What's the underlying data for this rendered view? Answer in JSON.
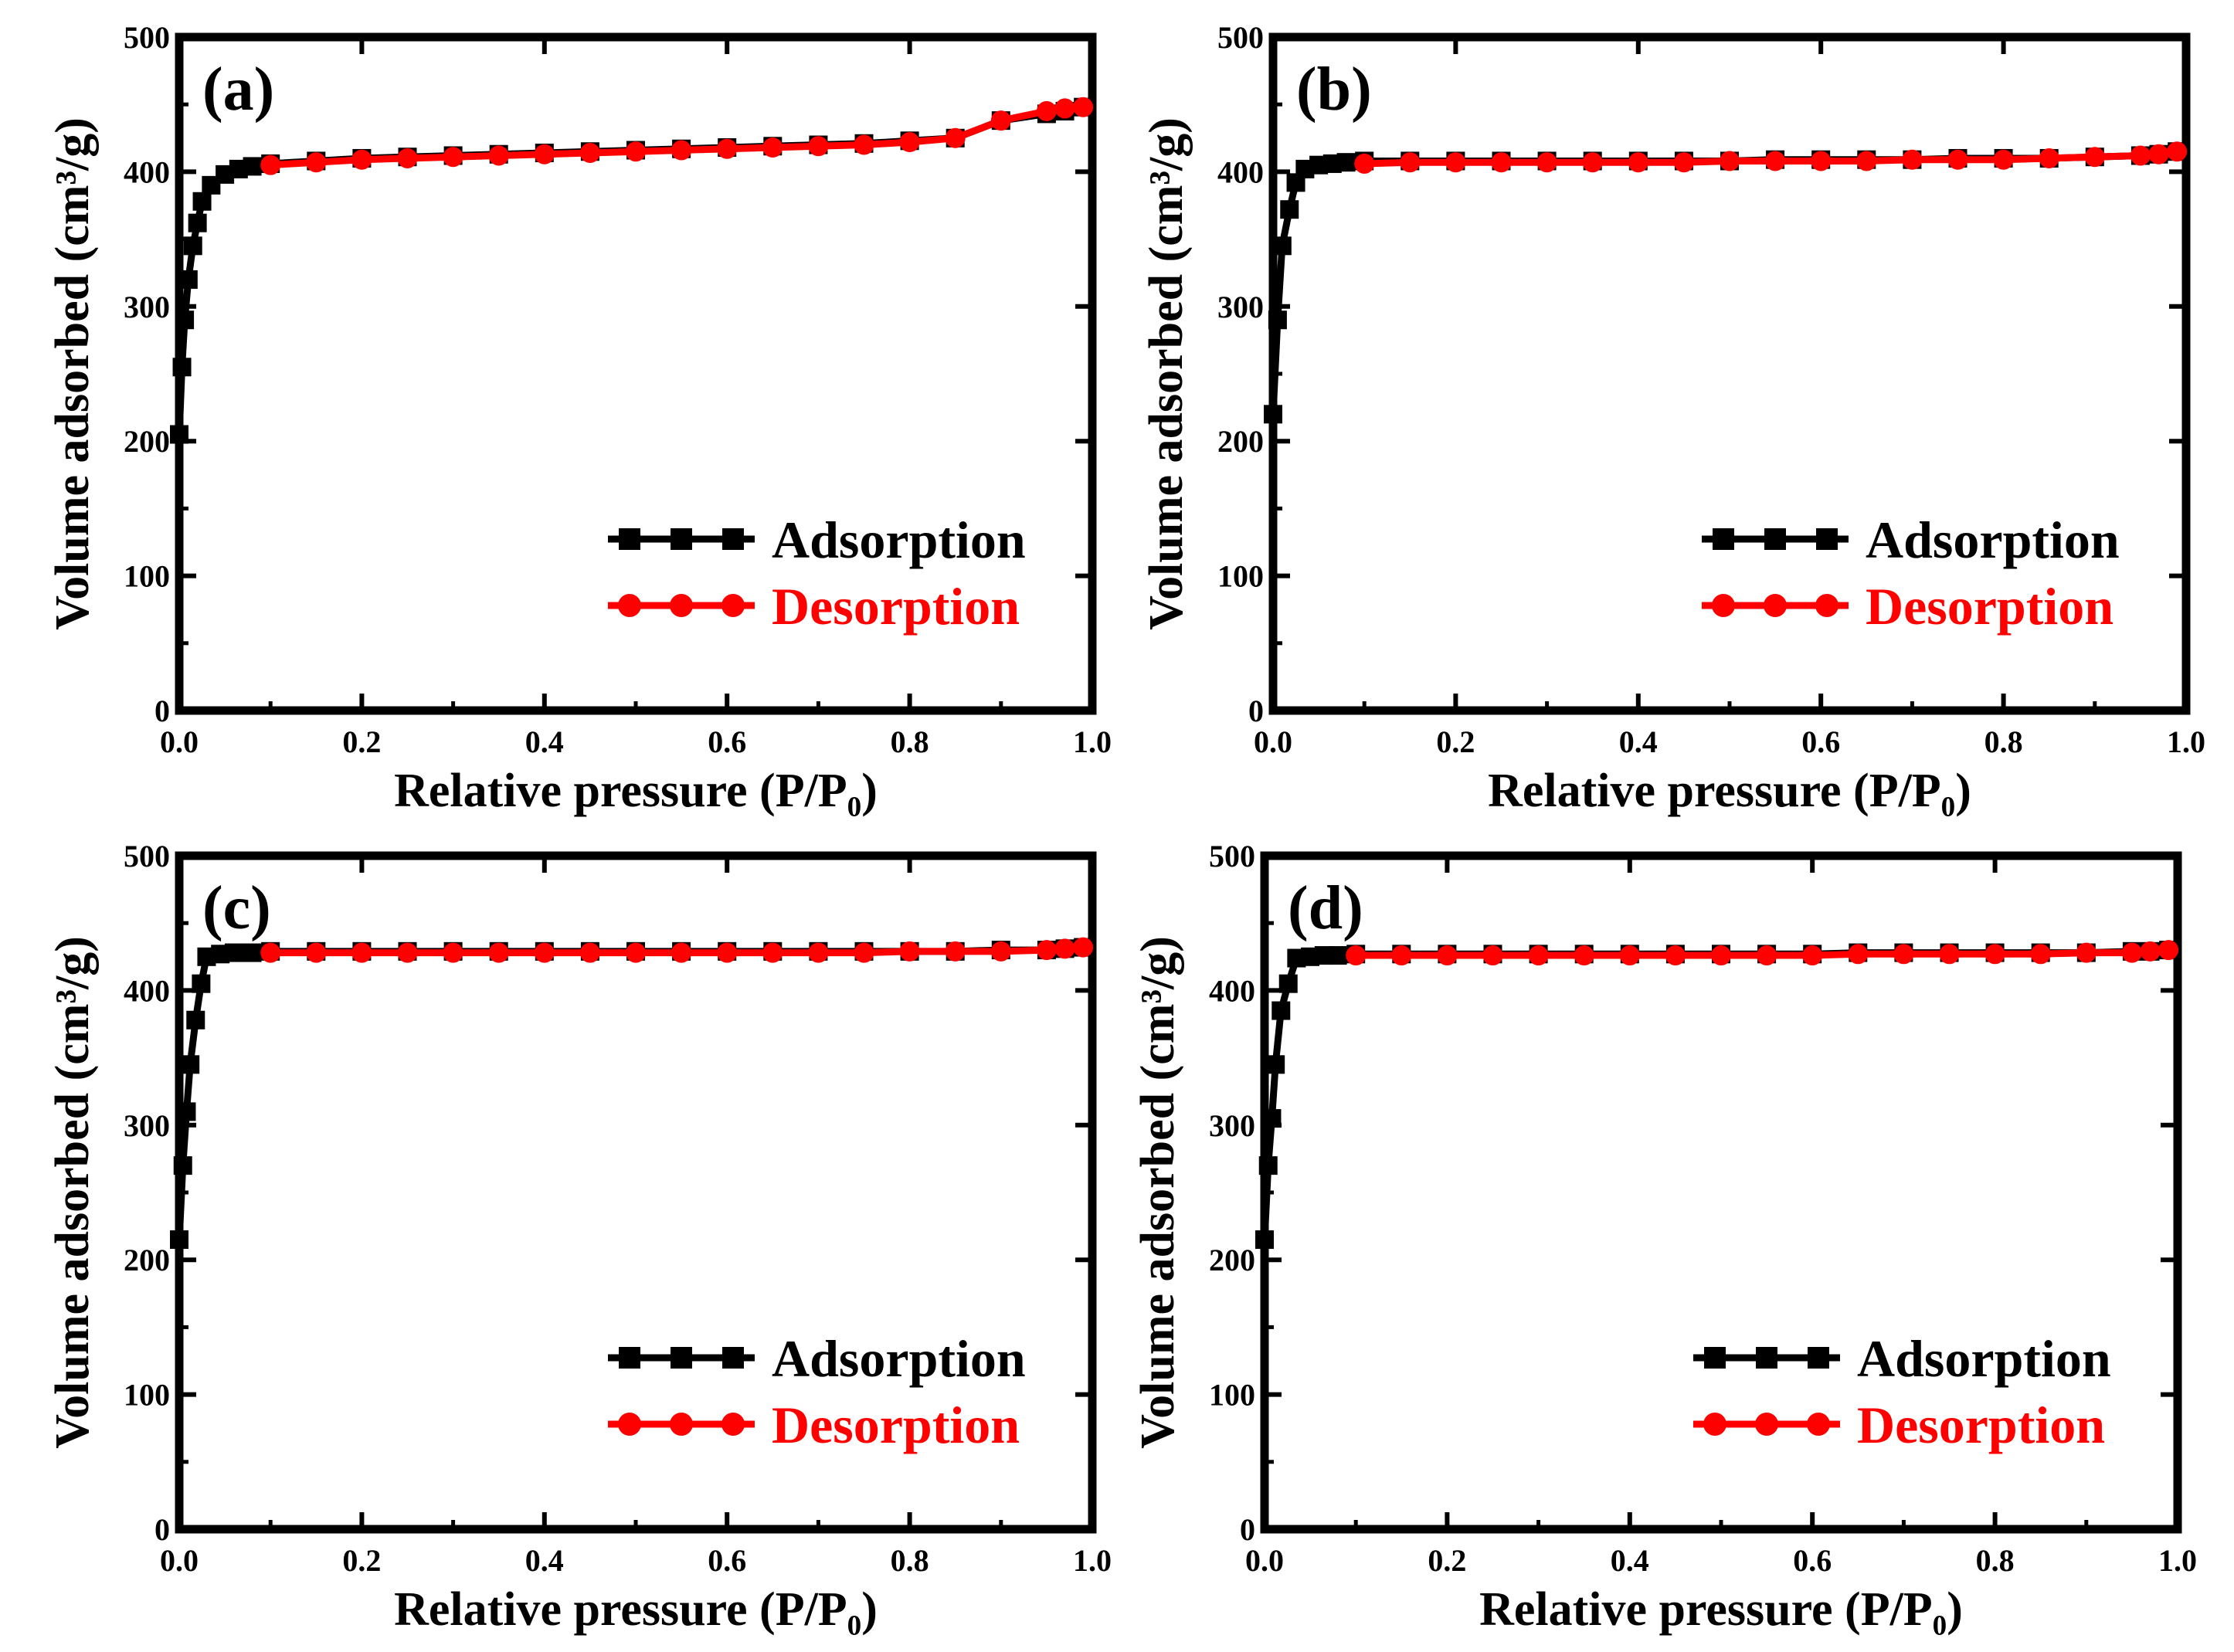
{
  "figure": {
    "colors": {
      "adsorption": "#000000",
      "desorption": "#ff0000",
      "axes": "#000000",
      "background": "#ffffff"
    }
  },
  "chart_data": [
    {
      "panel": "(a)",
      "type": "line",
      "xlabel": "Relative pressure (P/P₀)",
      "ylabel": "Volume adsorbed (cm³/g)",
      "xlim": [
        0.0,
        1.0
      ],
      "ylim": [
        0,
        500
      ],
      "xticks": [
        "0.0",
        "0.2",
        "0.4",
        "0.6",
        "0.8",
        "1.0"
      ],
      "yticks": [
        "0",
        "100",
        "200",
        "300",
        "400",
        "500"
      ],
      "legend": {
        "position": "bottom-right",
        "entries": [
          "Adsorption",
          "Desorption"
        ]
      },
      "series": [
        {
          "name": "Adsorption",
          "color": "#000000",
          "marker": "square",
          "points": [
            [
              0.0,
              205
            ],
            [
              0.003,
              255
            ],
            [
              0.006,
              290
            ],
            [
              0.01,
              320
            ],
            [
              0.015,
              345
            ],
            [
              0.02,
              362
            ],
            [
              0.025,
              378
            ],
            [
              0.035,
              390
            ],
            [
              0.05,
              398
            ],
            [
              0.065,
              402
            ],
            [
              0.08,
              404
            ],
            [
              0.1,
              406
            ],
            [
              0.15,
              408
            ],
            [
              0.2,
              410
            ],
            [
              0.25,
              411
            ],
            [
              0.3,
              412
            ],
            [
              0.35,
              413
            ],
            [
              0.4,
              414
            ],
            [
              0.45,
              415
            ],
            [
              0.5,
              416
            ],
            [
              0.55,
              417
            ],
            [
              0.6,
              418
            ],
            [
              0.65,
              419
            ],
            [
              0.7,
              420
            ],
            [
              0.75,
              421
            ],
            [
              0.8,
              423
            ],
            [
              0.85,
              425
            ],
            [
              0.9,
              438
            ],
            [
              0.95,
              443
            ],
            [
              0.97,
              445
            ],
            [
              0.99,
              448
            ]
          ]
        },
        {
          "name": "Desorption",
          "color": "#ff0000",
          "marker": "circle",
          "points": [
            [
              0.1,
              405
            ],
            [
              0.15,
              407
            ],
            [
              0.2,
              409
            ],
            [
              0.25,
              410
            ],
            [
              0.3,
              411
            ],
            [
              0.35,
              412
            ],
            [
              0.4,
              413
            ],
            [
              0.45,
              414
            ],
            [
              0.5,
              415
            ],
            [
              0.55,
              416
            ],
            [
              0.6,
              417
            ],
            [
              0.65,
              418
            ],
            [
              0.7,
              419
            ],
            [
              0.75,
              420
            ],
            [
              0.8,
              422
            ],
            [
              0.85,
              425
            ],
            [
              0.9,
              438
            ],
            [
              0.95,
              445
            ],
            [
              0.97,
              447
            ],
            [
              0.99,
              448
            ]
          ]
        }
      ]
    },
    {
      "panel": "(b)",
      "type": "line",
      "xlabel": "Relative pressure (P/P₀)",
      "ylabel": "Volume adsorbed (cm³/g)",
      "xlim": [
        0.0,
        1.0
      ],
      "ylim": [
        0,
        500
      ],
      "xticks": [
        "0.0",
        "0.2",
        "0.4",
        "0.6",
        "0.8",
        "1.0"
      ],
      "yticks": [
        "0",
        "100",
        "200",
        "300",
        "400",
        "500"
      ],
      "legend": {
        "position": "bottom-right",
        "entries": [
          "Adsorption",
          "Desorption"
        ]
      },
      "series": [
        {
          "name": "Adsorption",
          "color": "#000000",
          "marker": "square",
          "points": [
            [
              0.0,
              220
            ],
            [
              0.005,
              290
            ],
            [
              0.01,
              345
            ],
            [
              0.018,
              372
            ],
            [
              0.025,
              392
            ],
            [
              0.035,
              402
            ],
            [
              0.05,
              405
            ],
            [
              0.065,
              406
            ],
            [
              0.08,
              407
            ],
            [
              0.1,
              408
            ],
            [
              0.15,
              408
            ],
            [
              0.2,
              408
            ],
            [
              0.25,
              408
            ],
            [
              0.3,
              408
            ],
            [
              0.35,
              408
            ],
            [
              0.4,
              408
            ],
            [
              0.45,
              408
            ],
            [
              0.5,
              408
            ],
            [
              0.55,
              409
            ],
            [
              0.6,
              409
            ],
            [
              0.65,
              409
            ],
            [
              0.7,
              409
            ],
            [
              0.75,
              410
            ],
            [
              0.8,
              410
            ],
            [
              0.85,
              410
            ],
            [
              0.9,
              411
            ],
            [
              0.95,
              412
            ],
            [
              0.97,
              413
            ],
            [
              0.99,
              415
            ]
          ]
        },
        {
          "name": "Desorption",
          "color": "#ff0000",
          "marker": "circle",
          "points": [
            [
              0.1,
              406
            ],
            [
              0.15,
              407
            ],
            [
              0.2,
              407
            ],
            [
              0.25,
              407
            ],
            [
              0.3,
              407
            ],
            [
              0.35,
              407
            ],
            [
              0.4,
              407
            ],
            [
              0.45,
              407
            ],
            [
              0.5,
              408
            ],
            [
              0.55,
              408
            ],
            [
              0.6,
              408
            ],
            [
              0.65,
              408
            ],
            [
              0.7,
              409
            ],
            [
              0.75,
              409
            ],
            [
              0.8,
              409
            ],
            [
              0.85,
              410
            ],
            [
              0.9,
              411
            ],
            [
              0.95,
              412
            ],
            [
              0.97,
              413
            ],
            [
              0.99,
              415
            ]
          ]
        }
      ]
    },
    {
      "panel": "(c)",
      "type": "line",
      "xlabel": "Relative pressure (P/P₀)",
      "ylabel": "Volume adsorbed (cm³/g)",
      "xlim": [
        0.0,
        1.0
      ],
      "ylim": [
        0,
        500
      ],
      "xticks": [
        "0.0",
        "0.2",
        "0.4",
        "0.6",
        "0.8",
        "1.0"
      ],
      "yticks": [
        "0",
        "100",
        "200",
        "300",
        "400",
        "500"
      ],
      "legend": {
        "position": "bottom-right",
        "entries": [
          "Adsorption",
          "Desorption"
        ]
      },
      "series": [
        {
          "name": "Adsorption",
          "color": "#000000",
          "marker": "square",
          "points": [
            [
              0.0,
              215
            ],
            [
              0.004,
              270
            ],
            [
              0.008,
              310
            ],
            [
              0.012,
              345
            ],
            [
              0.018,
              378
            ],
            [
              0.024,
              405
            ],
            [
              0.03,
              425
            ],
            [
              0.045,
              427
            ],
            [
              0.06,
              428
            ],
            [
              0.08,
              428
            ],
            [
              0.1,
              429
            ],
            [
              0.15,
              429
            ],
            [
              0.2,
              429
            ],
            [
              0.25,
              429
            ],
            [
              0.3,
              429
            ],
            [
              0.35,
              429
            ],
            [
              0.4,
              429
            ],
            [
              0.45,
              429
            ],
            [
              0.5,
              429
            ],
            [
              0.55,
              429
            ],
            [
              0.6,
              429
            ],
            [
              0.65,
              429
            ],
            [
              0.7,
              429
            ],
            [
              0.75,
              429
            ],
            [
              0.8,
              429
            ],
            [
              0.85,
              429
            ],
            [
              0.9,
              430
            ],
            [
              0.95,
              430
            ],
            [
              0.97,
              431
            ],
            [
              0.99,
              432
            ]
          ]
        },
        {
          "name": "Desorption",
          "color": "#ff0000",
          "marker": "circle",
          "points": [
            [
              0.1,
              428
            ],
            [
              0.15,
              428
            ],
            [
              0.2,
              428
            ],
            [
              0.25,
              428
            ],
            [
              0.3,
              428
            ],
            [
              0.35,
              428
            ],
            [
              0.4,
              428
            ],
            [
              0.45,
              428
            ],
            [
              0.5,
              428
            ],
            [
              0.55,
              428
            ],
            [
              0.6,
              428
            ],
            [
              0.65,
              428
            ],
            [
              0.7,
              428
            ],
            [
              0.75,
              428
            ],
            [
              0.8,
              429
            ],
            [
              0.85,
              429
            ],
            [
              0.9,
              429
            ],
            [
              0.95,
              430
            ],
            [
              0.97,
              431
            ],
            [
              0.99,
              432
            ]
          ]
        }
      ]
    },
    {
      "panel": "(d)",
      "type": "line",
      "xlabel": "Relative pressure (P/P₀)",
      "ylabel": "Volume adsorbed (cm³/g)",
      "xlim": [
        0.0,
        1.0
      ],
      "ylim": [
        0,
        500
      ],
      "xticks": [
        "0.0",
        "0.2",
        "0.4",
        "0.6",
        "0.8",
        "1.0"
      ],
      "yticks": [
        "0",
        "100",
        "200",
        "300",
        "400",
        "500"
      ],
      "legend": {
        "position": "bottom-right",
        "entries": [
          "Adsorption",
          "Desorption"
        ]
      },
      "series": [
        {
          "name": "Adsorption",
          "color": "#000000",
          "marker": "square",
          "points": [
            [
              0.0,
              215
            ],
            [
              0.004,
              270
            ],
            [
              0.008,
              305
            ],
            [
              0.012,
              345
            ],
            [
              0.018,
              385
            ],
            [
              0.026,
              405
            ],
            [
              0.035,
              424
            ],
            [
              0.05,
              425
            ],
            [
              0.065,
              426
            ],
            [
              0.08,
              426
            ],
            [
              0.1,
              427
            ],
            [
              0.15,
              427
            ],
            [
              0.2,
              427
            ],
            [
              0.25,
              427
            ],
            [
              0.3,
              427
            ],
            [
              0.35,
              427
            ],
            [
              0.4,
              427
            ],
            [
              0.45,
              427
            ],
            [
              0.5,
              427
            ],
            [
              0.55,
              427
            ],
            [
              0.6,
              427
            ],
            [
              0.65,
              428
            ],
            [
              0.7,
              428
            ],
            [
              0.75,
              428
            ],
            [
              0.8,
              428
            ],
            [
              0.85,
              428
            ],
            [
              0.9,
              428
            ],
            [
              0.95,
              429
            ],
            [
              0.97,
              429
            ],
            [
              0.99,
              430
            ]
          ]
        },
        {
          "name": "Desorption",
          "color": "#ff0000",
          "marker": "circle",
          "points": [
            [
              0.1,
              426
            ],
            [
              0.15,
              426
            ],
            [
              0.2,
              426
            ],
            [
              0.25,
              426
            ],
            [
              0.3,
              426
            ],
            [
              0.35,
              426
            ],
            [
              0.4,
              426
            ],
            [
              0.45,
              426
            ],
            [
              0.5,
              426
            ],
            [
              0.55,
              426
            ],
            [
              0.6,
              426
            ],
            [
              0.65,
              427
            ],
            [
              0.7,
              427
            ],
            [
              0.75,
              427
            ],
            [
              0.8,
              427
            ],
            [
              0.85,
              427
            ],
            [
              0.9,
              428
            ],
            [
              0.95,
              428
            ],
            [
              0.97,
              429
            ],
            [
              0.99,
              430
            ]
          ]
        }
      ]
    }
  ]
}
